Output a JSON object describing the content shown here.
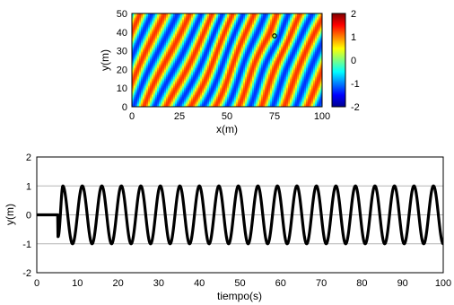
{
  "chart_data": [
    {
      "type": "heatmap",
      "xlabel": "x(m)",
      "ylabel": "y(m)",
      "xlim": [
        0,
        100
      ],
      "ylim": [
        0,
        50
      ],
      "xticks": [
        0,
        25,
        50,
        75,
        100
      ],
      "yticks": [
        0,
        10,
        20,
        30,
        40,
        50
      ],
      "colorbar": {
        "range": [
          -2,
          2
        ],
        "ticks": [
          2,
          1,
          0,
          -1,
          -2
        ],
        "colormap": "jet"
      },
      "wave_field": {
        "amplitude": 1.3,
        "wavelength_m": 12,
        "source_point": [
          75,
          38
        ]
      },
      "marker": {
        "x": 75,
        "y": 38
      },
      "grid": false
    },
    {
      "type": "line",
      "xlabel": "tiempo(s)",
      "ylabel": "y(m)",
      "xlim": [
        0,
        100
      ],
      "ylim": [
        -2,
        2
      ],
      "xticks": [
        0,
        10,
        20,
        30,
        40,
        50,
        60,
        70,
        80,
        90,
        100
      ],
      "yticks": [
        2,
        1,
        0,
        -1,
        -2
      ],
      "grid": true,
      "series": [
        {
          "color": "#000000",
          "amplitude": 1.0,
          "period_s": 4.8,
          "start_time_s": 5.2,
          "baseline": 0
        }
      ]
    }
  ]
}
